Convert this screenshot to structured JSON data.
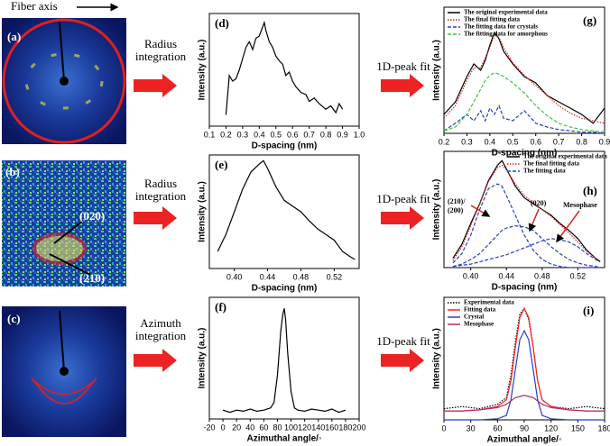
{
  "panels": {
    "fiber_axis": "Fiber axis",
    "a": "(a)",
    "b": "(b)",
    "b_020": "(020)",
    "b_210": "(210)",
    "c": "(c)"
  },
  "steps": [
    {
      "method": [
        "Radius",
        "integration"
      ],
      "fit": "1D-peak fit"
    },
    {
      "method": [
        "Radius",
        "integration"
      ],
      "fit": "1D-peak fit"
    },
    {
      "method": [
        "Azimuth",
        "integration"
      ],
      "fit": "1D-peak fit"
    }
  ],
  "chart_data": [
    {
      "type": "line",
      "label": "(d)",
      "xlabel": "D-spacing (nm)",
      "ylabel": "Intensity (a.u.)",
      "xlim": [
        0.1,
        1.0
      ],
      "ylim": [
        0,
        100
      ],
      "xticks": [
        0.1,
        0.2,
        0.3,
        0.4,
        0.5,
        0.6,
        0.7,
        0.8,
        0.9,
        {
          "value": 1,
          "label": "1.0"
        }
      ],
      "x": [
        0.2,
        0.22,
        0.24,
        0.26,
        0.28,
        0.3,
        0.32,
        0.34,
        0.36,
        0.38,
        0.4,
        0.42,
        0.43,
        0.44,
        0.46,
        0.48,
        0.5,
        0.52,
        0.54,
        0.56,
        0.58,
        0.6,
        0.62,
        0.65,
        0.68,
        0.7,
        0.73,
        0.76,
        0.8,
        0.83,
        0.86,
        0.88,
        0.9
      ],
      "series": [
        {
          "color": "#000000",
          "values": [
            10,
            45,
            40,
            42,
            50,
            60,
            70,
            75,
            68,
            78,
            80,
            88,
            92,
            85,
            75,
            70,
            62,
            58,
            55,
            45,
            48,
            40,
            35,
            30,
            28,
            22,
            25,
            20,
            15,
            18,
            12,
            20,
            15
          ]
        }
      ]
    },
    {
      "type": "line",
      "label": "(e)",
      "xlabel": "D-spacing (nm)",
      "ylabel": "Intensity (a.u.)",
      "xlim": [
        0.37,
        0.55
      ],
      "ylim": [
        0,
        100
      ],
      "xticks": [
        {
          "value": 0.4,
          "label": "0.40"
        },
        0.44,
        0.48,
        0.52
      ],
      "x": [
        0.38,
        0.39,
        0.4,
        0.41,
        0.42,
        0.43,
        0.435,
        0.44,
        0.45,
        0.46,
        0.47,
        0.48,
        0.49,
        0.5,
        0.51,
        0.52,
        0.53,
        0.54,
        0.545
      ],
      "series": [
        {
          "color": "#000000",
          "values": [
            15,
            30,
            50,
            70,
            85,
            92,
            95,
            88,
            72,
            60,
            55,
            50,
            42,
            35,
            30,
            25,
            15,
            10,
            8
          ]
        }
      ]
    },
    {
      "type": "line",
      "label": "(f)",
      "xlabel": "Azimuthal angle/◦",
      "ylabel": "Intensity (a.u.)",
      "xlim": [
        -20,
        200
      ],
      "ylim": [
        0,
        110
      ],
      "xticks": [
        -20,
        0,
        20,
        40,
        60,
        80,
        100,
        120,
        140,
        160,
        180,
        200
      ],
      "x": [
        0,
        10,
        20,
        30,
        40,
        50,
        60,
        70,
        75,
        80,
        85,
        88,
        90,
        92,
        95,
        100,
        105,
        110,
        120,
        130,
        140,
        150,
        160,
        170,
        180
      ],
      "series": [
        {
          "color": "#000000",
          "values": [
            8,
            6,
            8,
            7,
            9,
            7,
            8,
            10,
            15,
            40,
            80,
            95,
            100,
            90,
            60,
            25,
            10,
            8,
            7,
            9,
            8,
            7,
            9,
            6,
            8
          ]
        }
      ]
    },
    {
      "type": "line",
      "label": "(g)",
      "xlabel": "D-spacing (nm)",
      "ylabel": "Intensity (a.u.)",
      "xlim": [
        0.2,
        0.9
      ],
      "ylim": [
        0,
        100
      ],
      "legend": "upper left",
      "xticks": [
        0.2,
        0.3,
        0.4,
        0.5,
        0.6,
        0.7,
        0.8,
        0.9
      ],
      "x": [
        0.2,
        0.25,
        0.3,
        0.33,
        0.36,
        0.38,
        0.4,
        0.42,
        0.44,
        0.46,
        0.5,
        0.55,
        0.6,
        0.65,
        0.7,
        0.75,
        0.8,
        0.85,
        0.9
      ],
      "series": [
        {
          "name": "The original experimental data",
          "color": "#000000",
          "dash": "solid",
          "values": [
            15,
            25,
            45,
            55,
            50,
            58,
            70,
            80,
            75,
            65,
            55,
            45,
            40,
            30,
            25,
            20,
            15,
            8,
            20
          ]
        },
        {
          "name": "The final fitting data",
          "color": "#e02020",
          "dash": "dotted",
          "values": [
            12,
            22,
            42,
            52,
            52,
            60,
            68,
            78,
            76,
            68,
            56,
            46,
            38,
            30,
            22,
            16,
            12,
            10,
            8
          ]
        },
        {
          "name": "The fitting data for crystals",
          "color": "#2a3fbf",
          "dash": "dashed",
          "values": [
            2,
            8,
            15,
            10,
            18,
            10,
            20,
            15,
            22,
            12,
            10,
            18,
            8,
            5,
            3,
            2,
            1,
            1,
            0
          ]
        },
        {
          "name": "The fitting data for amorphous",
          "color": "#3ec43e",
          "dash": "dashed",
          "values": [
            2,
            5,
            15,
            25,
            35,
            42,
            46,
            48,
            47,
            45,
            40,
            32,
            22,
            14,
            8,
            5,
            3,
            2,
            1
          ]
        }
      ]
    },
    {
      "type": "line",
      "label": "(h)",
      "xlabel": "D-spacing (nm)",
      "ylabel": "Intensity (a.u.)",
      "xlim": [
        0.37,
        0.55
      ],
      "ylim": [
        0,
        100
      ],
      "legend": "upper right",
      "xticks": [
        {
          "value": 0.4,
          "label": "0.40"
        },
        0.44,
        0.48,
        0.52
      ],
      "annotations": [
        "(210)/",
        "(200)",
        "(020)",
        "Mesophase"
      ],
      "x": [
        0.38,
        0.39,
        0.4,
        0.41,
        0.42,
        0.43,
        0.435,
        0.44,
        0.45,
        0.46,
        0.47,
        0.48,
        0.49,
        0.5,
        0.51,
        0.52,
        0.53,
        0.54,
        0.545
      ],
      "series": [
        {
          "name": "The original experimental data",
          "color": "#000000",
          "dash": "solid",
          "values": [
            8,
            20,
            38,
            55,
            75,
            88,
            92,
            85,
            70,
            60,
            55,
            50,
            45,
            38,
            32,
            25,
            15,
            8,
            5
          ]
        },
        {
          "name": "The final fitting data",
          "color": "#e02020",
          "dash": "dotted",
          "values": [
            6,
            18,
            36,
            55,
            74,
            86,
            88,
            84,
            72,
            62,
            56,
            50,
            44,
            37,
            30,
            22,
            14,
            8,
            6
          ]
        },
        {
          "name": "The fitting data",
          "color": "#2a3fbf",
          "dash": "dashed",
          "values": [
            4,
            12,
            28,
            50,
            68,
            72,
            70,
            62,
            45,
            28,
            15,
            7,
            3,
            1,
            0,
            0,
            0,
            0,
            0
          ]
        },
        {
          "color": "#2a3fbf",
          "dash": "dashed",
          "values": [
            1,
            3,
            7,
            12,
            20,
            28,
            32,
            34,
            36,
            35,
            32,
            25,
            18,
            12,
            7,
            4,
            2,
            1,
            0
          ]
        },
        {
          "color": "#2a3fbf",
          "dash": "dashed",
          "values": [
            1,
            2,
            3,
            5,
            7,
            9,
            10,
            11,
            14,
            17,
            20,
            23,
            25,
            24,
            22,
            18,
            12,
            7,
            5
          ]
        }
      ]
    },
    {
      "type": "line",
      "label": "(i)",
      "xlabel": "Azimuthal angle/◦",
      "ylabel": "Intensity (a.u.)",
      "xlim": [
        0,
        180
      ],
      "ylim": [
        0,
        110
      ],
      "legend": "upper left",
      "xticks": [
        0,
        30,
        60,
        90,
        120,
        150,
        180
      ],
      "x": [
        0,
        20,
        40,
        60,
        70,
        75,
        80,
        85,
        90,
        95,
        100,
        105,
        110,
        120,
        140,
        160,
        180
      ],
      "series": [
        {
          "name": "Experimental data",
          "color": "#000000",
          "dash": "dotted",
          "values": [
            10,
            12,
            10,
            14,
            20,
            40,
            70,
            95,
            100,
            90,
            65,
            35,
            18,
            12,
            10,
            12,
            10
          ]
        },
        {
          "name": "Fitting data",
          "color": "#ff2020",
          "dash": "solid",
          "values": [
            8,
            8,
            9,
            12,
            18,
            35,
            65,
            92,
            100,
            92,
            65,
            35,
            18,
            12,
            9,
            8,
            8
          ]
        },
        {
          "name": "Crystal",
          "color": "#2a3fbf",
          "dash": "solid",
          "values": [
            0,
            0,
            0,
            1,
            4,
            18,
            45,
            72,
            80,
            72,
            45,
            18,
            4,
            1,
            0,
            0,
            0
          ]
        },
        {
          "name": "Mesophase",
          "color": "#b0306a",
          "dash": "solid",
          "values": [
            8,
            8,
            9,
            11,
            14,
            17,
            20,
            21,
            22,
            21,
            20,
            17,
            14,
            11,
            9,
            8,
            8
          ]
        }
      ]
    }
  ]
}
